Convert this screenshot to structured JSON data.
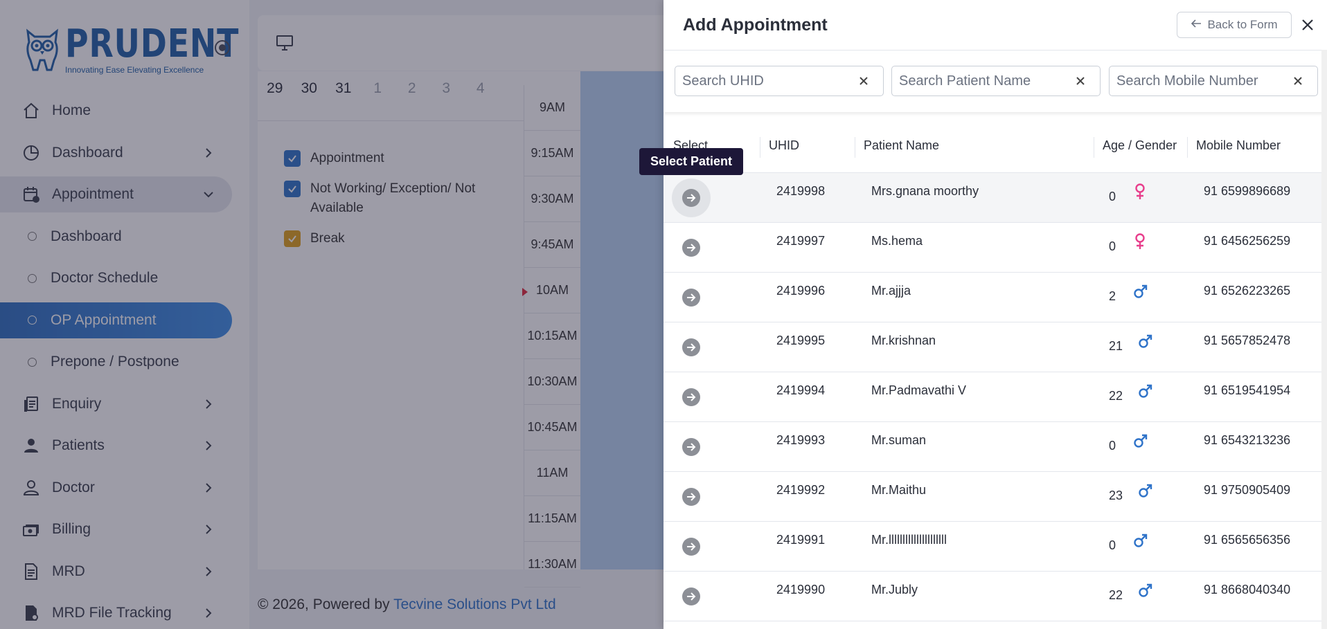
{
  "brand": {
    "name": "PRUDENT",
    "tagline": "Innovating Ease Elevating Excellence"
  },
  "sidebar": {
    "items": [
      {
        "label": "Home"
      },
      {
        "label": "Dashboard"
      },
      {
        "label": "Appointment"
      },
      {
        "label": "Dashboard"
      },
      {
        "label": "Doctor Schedule"
      },
      {
        "label": "OP Appointment"
      },
      {
        "label": "Prepone / Postpone"
      },
      {
        "label": "Enquiry"
      },
      {
        "label": "Patients"
      },
      {
        "label": "Doctor"
      },
      {
        "label": "Billing"
      },
      {
        "label": "MRD"
      },
      {
        "label": "MRD File Tracking"
      }
    ]
  },
  "calendar": {
    "dates": [
      "29",
      "30",
      "31",
      "1",
      "2",
      "3",
      "4"
    ],
    "legend": [
      {
        "label": "Appointment",
        "color": "#2f73c9"
      },
      {
        "label": "Not Working/ Exception/ Not Available",
        "color": "#2f73c9"
      },
      {
        "label": "Break",
        "color": "#e0a11b"
      }
    ],
    "times": [
      "9AM",
      "9:15AM",
      "9:30AM",
      "9:45AM",
      "10AM",
      "10:15AM",
      "10:30AM",
      "10:45AM",
      "11AM",
      "11:15AM",
      "11:30AM"
    ]
  },
  "footer": {
    "prefix": "© 2026, Powered by",
    "link": "Tecvine Solutions Pvt Ltd"
  },
  "drawer": {
    "title": "Add Appointment",
    "back_label": "Back to Form",
    "search": {
      "uhid_placeholder": "Search UHID",
      "name_placeholder": "Search Patient Name",
      "mobile_placeholder": "Search Mobile Number"
    },
    "columns": [
      "Select",
      "UHID",
      "Patient Name",
      "Age / Gender",
      "Mobile Number"
    ],
    "tooltip": "Select Patient",
    "rows": [
      {
        "uhid": "2419998",
        "name": "Mrs.gnana moorthy",
        "age": "0",
        "gender": "female",
        "mobile": "91 6599896689"
      },
      {
        "uhid": "2419997",
        "name": "Ms.hema",
        "age": "0",
        "gender": "female",
        "mobile": "91 6456256259"
      },
      {
        "uhid": "2419996",
        "name": "Mr.ajjja",
        "age": "2",
        "gender": "male",
        "mobile": "91 6526223265"
      },
      {
        "uhid": "2419995",
        "name": "Mr.krishnan",
        "age": "21",
        "gender": "male",
        "mobile": "91 5657852478"
      },
      {
        "uhid": "2419994",
        "name": "Mr.Padmavathi V",
        "age": "22",
        "gender": "male",
        "mobile": "91 6519541954"
      },
      {
        "uhid": "2419993",
        "name": "Mr.suman",
        "age": "0",
        "gender": "male",
        "mobile": "91 6543213236"
      },
      {
        "uhid": "2419992",
        "name": "Mr.Maithu",
        "age": "23",
        "gender": "male",
        "mobile": "91 9750905409"
      },
      {
        "uhid": "2419991",
        "name": "Mr.lllllllllllllllllllll",
        "age": "0",
        "gender": "male",
        "mobile": "91 6565656356"
      },
      {
        "uhid": "2419990",
        "name": "Mr.Jubly",
        "age": "22",
        "gender": "male",
        "mobile": "91 8668040340"
      }
    ]
  },
  "colors": {
    "primary": "#2f73c9",
    "female": "#e83e8c",
    "male": "#2f73c9",
    "tooltip_bg": "#1d1738"
  }
}
